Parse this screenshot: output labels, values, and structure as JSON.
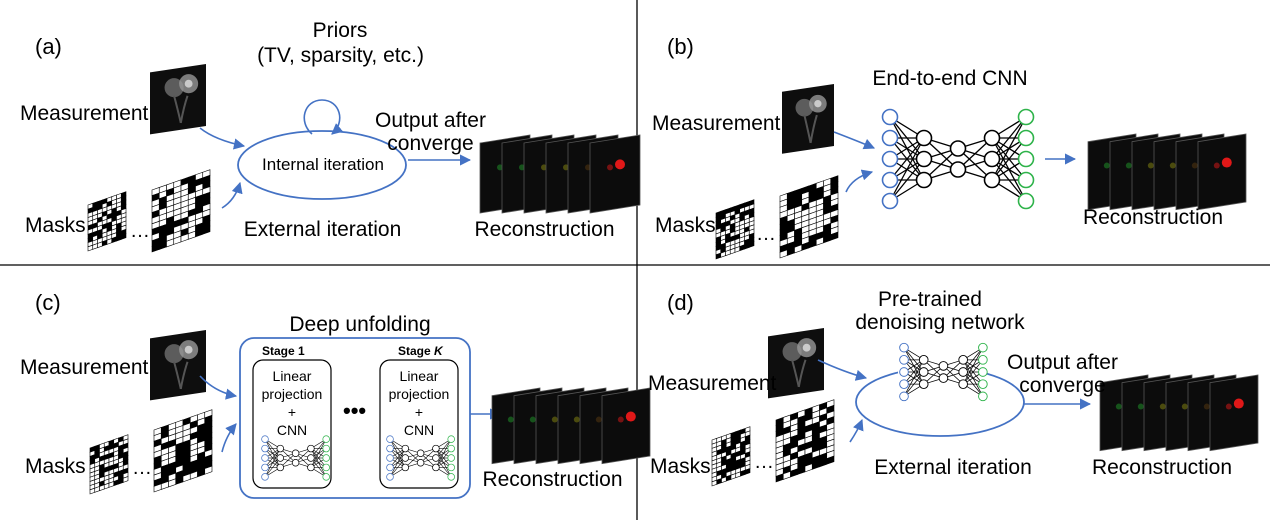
{
  "panels": {
    "a": {
      "label": "(a)",
      "priors_title": "Priors",
      "priors_detail": "(TV, sparsity, etc.)",
      "measurement": "Measurement",
      "masks": "Masks",
      "output_line1": "Output after",
      "output_line2": "converge",
      "internal_iteration": "Internal iteration",
      "external_iteration": "External iteration",
      "reconstruction": "Reconstruction"
    },
    "b": {
      "label": "(b)",
      "title": "End-to-end CNN",
      "measurement": "Measurement",
      "masks": "Masks",
      "reconstruction": "Reconstruction"
    },
    "c": {
      "label": "(c)",
      "title": "Deep unfolding",
      "measurement": "Measurement",
      "masks": "Masks",
      "stage1": "Stage 1",
      "stagek_prefix": "Stage ",
      "stagek_italic": "K",
      "linear1": "Linear",
      "projection": "projection",
      "plus": "+",
      "cnn": "CNN",
      "reconstruction": "Reconstruction"
    },
    "d": {
      "label": "(d)",
      "title_line1": "Pre-trained",
      "title_line2": "denoising network",
      "measurement": "Measurement",
      "masks": "Masks",
      "output_line1": "Output after",
      "output_line2": "converge",
      "external_iteration": "External iteration",
      "reconstruction": "Reconstruction"
    }
  },
  "colors": {
    "arrow": "#4472c4",
    "node_blue": "#4472c4",
    "node_green": "#2eb34a",
    "recon_green": "#1f9a2a",
    "recon_yellow": "#8a8a10",
    "recon_red": "#e01818"
  }
}
